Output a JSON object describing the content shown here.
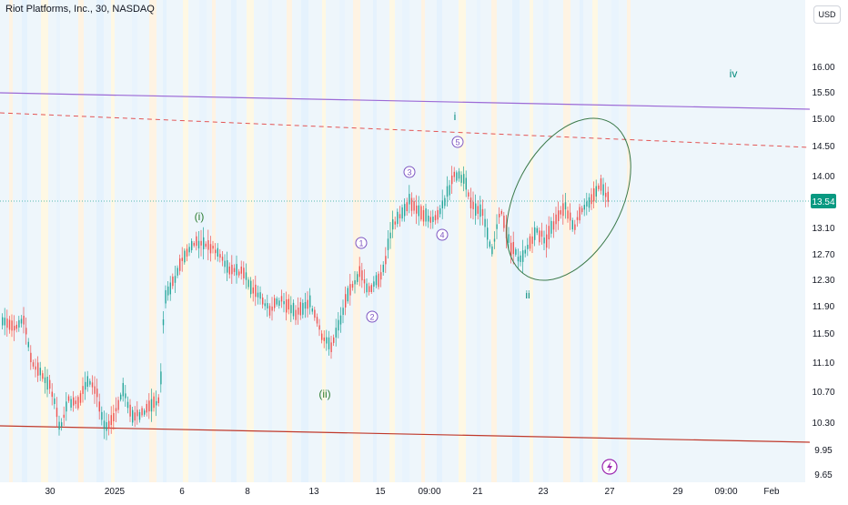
{
  "header": {
    "symbol_title": "Riot Platforms, Inc., 30, NASDAQ",
    "currency": "USD"
  },
  "price_axis": {
    "ticks": [
      "16.00",
      "15.50",
      "15.00",
      "14.50",
      "14.00",
      "13.10",
      "12.70",
      "12.30",
      "11.90",
      "11.50",
      "11.10",
      "10.70",
      "10.30",
      "9.95",
      "9.65"
    ],
    "last_price": "13.54",
    "last_price_color": "#089981"
  },
  "time_axis": {
    "ticks": [
      "30",
      "2025",
      "6",
      "8",
      "13",
      "15",
      "09:00",
      "21",
      "23",
      "27",
      "29",
      "09:00",
      "Feb"
    ]
  },
  "annotations": {
    "wave_i_minor": "(i)",
    "wave_ii_minor": "(ii)",
    "wave_1": "1",
    "wave_2": "2",
    "wave_3": "3",
    "wave_4": "4",
    "wave_5": "5",
    "wave_i": "i",
    "wave_ii": "ii",
    "wave_iv": "iv"
  },
  "colors": {
    "bull": "#26a69a",
    "bear": "#ef5350",
    "upper_channel": "#9c6ad6",
    "lower_channel": "#c0392b",
    "dashed_line": "#e35555",
    "ellipse": "#3c7a4a",
    "wave_green": "#2e7d32",
    "wave_purple": "#7e57c2",
    "wave_teal": "#00897b"
  },
  "icons": {
    "event_marker": "lightning-bolt-icon"
  }
}
